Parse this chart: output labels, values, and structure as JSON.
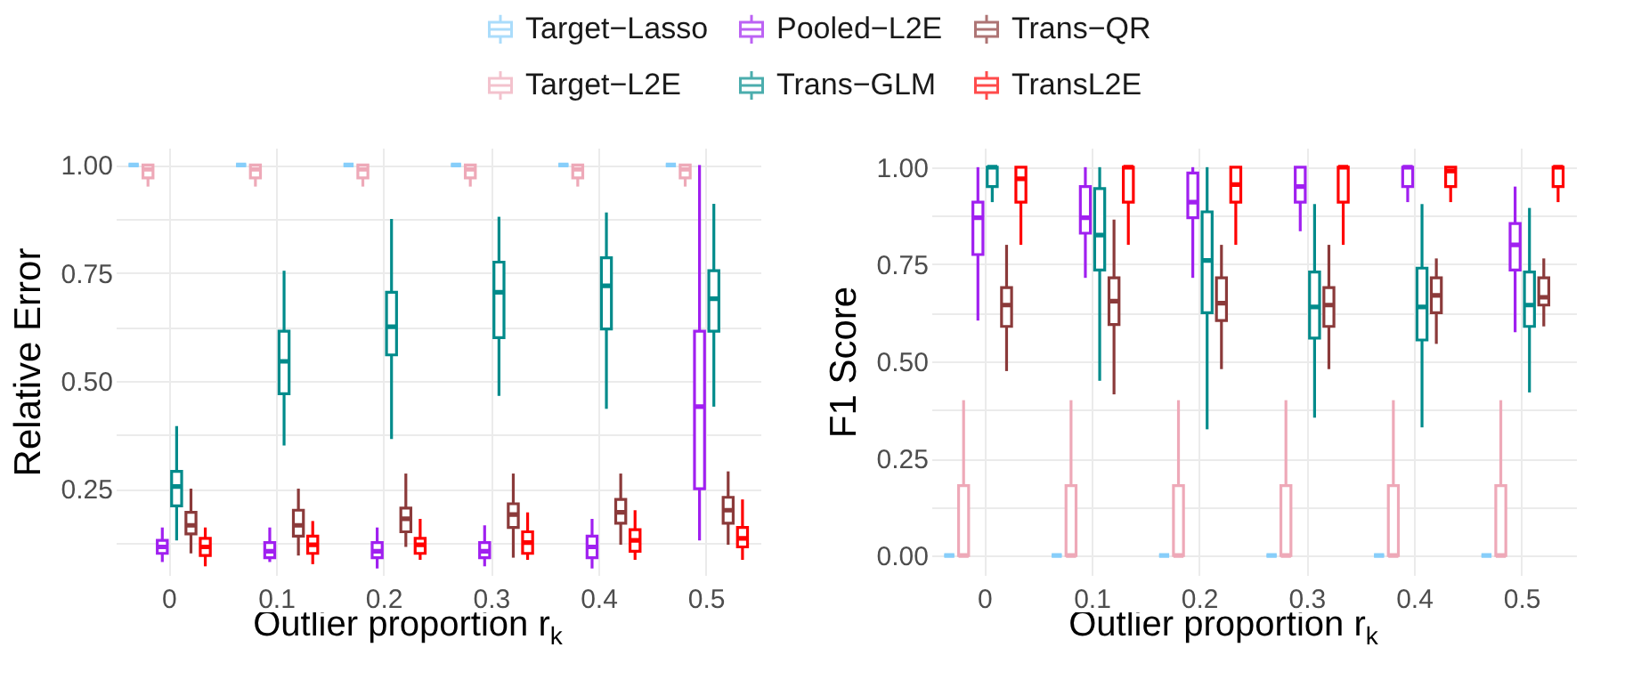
{
  "chart_data": [
    {
      "type": "box",
      "ylabel": "Relative Error",
      "xlabel": "Outlier proportion  r$_{k}$",
      "legend": "top",
      "grid": true,
      "categories": [
        "0",
        "0.1",
        "0.2",
        "0.3",
        "0.4",
        "0.5"
      ],
      "ylim": [
        0.05,
        1.04
      ],
      "yticks": [
        {
          "value": 0.125,
          "label": null
        },
        {
          "value": 0.25,
          "label": "0.25"
        },
        {
          "value": 0.375,
          "label": null
        },
        {
          "value": 0.5,
          "label": "0.50"
        },
        {
          "value": 0.625,
          "label": null
        },
        {
          "value": 0.75,
          "label": "0.75"
        },
        {
          "value": 0.875,
          "label": null
        },
        {
          "value": 1.0,
          "label": "1.00"
        }
      ],
      "series": [
        {
          "name": "Target−Lasso",
          "color": "#87cefa",
          "boxes": [
            {
              "low": 1,
              "q1": 1,
              "median": 1,
              "q3": 1,
              "high": 1
            },
            {
              "low": 1,
              "q1": 1,
              "median": 1,
              "q3": 1,
              "high": 1
            },
            {
              "low": 1,
              "q1": 1,
              "median": 1,
              "q3": 1,
              "high": 1
            },
            {
              "low": 1,
              "q1": 1,
              "median": 1,
              "q3": 1,
              "high": 1
            },
            {
              "low": 1,
              "q1": 1,
              "median": 1,
              "q3": 1,
              "high": 1
            },
            {
              "low": 1,
              "q1": 1,
              "median": 1,
              "q3": 1,
              "high": 1
            }
          ]
        },
        {
          "name": "Target−L2E",
          "color": "#eea9b8",
          "boxes": [
            {
              "low": 0.95,
              "q1": 0.97,
              "median": 0.99,
              "q3": 1,
              "high": 1
            },
            {
              "low": 0.95,
              "q1": 0.97,
              "median": 0.99,
              "q3": 1,
              "high": 1
            },
            {
              "low": 0.95,
              "q1": 0.97,
              "median": 0.99,
              "q3": 1,
              "high": 1
            },
            {
              "low": 0.95,
              "q1": 0.97,
              "median": 0.99,
              "q3": 1,
              "high": 1
            },
            {
              "low": 0.95,
              "q1": 0.97,
              "median": 0.99,
              "q3": 1,
              "high": 1
            },
            {
              "low": 0.95,
              "q1": 0.97,
              "median": 0.99,
              "q3": 1,
              "high": 1
            }
          ]
        },
        {
          "name": "Pooled−L2E",
          "color": "#a020f0",
          "boxes": [
            {
              "low": 0.08,
              "q1": 0.1,
              "median": 0.115,
              "q3": 0.13,
              "high": 0.16
            },
            {
              "low": 0.08,
              "q1": 0.09,
              "median": 0.105,
              "q3": 0.125,
              "high": 0.16
            },
            {
              "low": 0.065,
              "q1": 0.09,
              "median": 0.105,
              "q3": 0.125,
              "high": 0.16
            },
            {
              "low": 0.07,
              "q1": 0.09,
              "median": 0.105,
              "q3": 0.125,
              "high": 0.165
            },
            {
              "low": 0.065,
              "q1": 0.09,
              "median": 0.115,
              "q3": 0.14,
              "high": 0.18
            },
            {
              "low": 0.13,
              "q1": 0.25,
              "median": 0.44,
              "q3": 0.615,
              "high": 1.0
            }
          ]
        },
        {
          "name": "Trans−GLM",
          "color": "#008b8b",
          "boxes": [
            {
              "low": 0.13,
              "q1": 0.21,
              "median": 0.255,
              "q3": 0.29,
              "high": 0.395
            },
            {
              "low": 0.35,
              "q1": 0.47,
              "median": 0.545,
              "q3": 0.615,
              "high": 0.755
            },
            {
              "low": 0.365,
              "q1": 0.56,
              "median": 0.625,
              "q3": 0.705,
              "high": 0.875
            },
            {
              "low": 0.465,
              "q1": 0.6,
              "median": 0.705,
              "q3": 0.775,
              "high": 0.88
            },
            {
              "low": 0.435,
              "q1": 0.62,
              "median": 0.72,
              "q3": 0.785,
              "high": 0.89
            },
            {
              "low": 0.44,
              "q1": 0.615,
              "median": 0.69,
              "q3": 0.755,
              "high": 0.91
            }
          ]
        },
        {
          "name": "Trans−QR",
          "color": "#8b3a3a",
          "boxes": [
            {
              "low": 0.1,
              "q1": 0.145,
              "median": 0.165,
              "q3": 0.195,
              "high": 0.25
            },
            {
              "low": 0.095,
              "q1": 0.14,
              "median": 0.165,
              "q3": 0.2,
              "high": 0.25
            },
            {
              "low": 0.115,
              "q1": 0.15,
              "median": 0.18,
              "q3": 0.205,
              "high": 0.285
            },
            {
              "low": 0.09,
              "q1": 0.16,
              "median": 0.19,
              "q3": 0.215,
              "high": 0.285
            },
            {
              "low": 0.12,
              "q1": 0.17,
              "median": 0.195,
              "q3": 0.225,
              "high": 0.285
            },
            {
              "low": 0.12,
              "q1": 0.17,
              "median": 0.2,
              "q3": 0.23,
              "high": 0.29
            }
          ]
        },
        {
          "name": "TransL2E",
          "color": "#ff0000",
          "boxes": [
            {
              "low": 0.07,
              "q1": 0.095,
              "median": 0.115,
              "q3": 0.135,
              "high": 0.16
            },
            {
              "low": 0.075,
              "q1": 0.1,
              "median": 0.12,
              "q3": 0.14,
              "high": 0.175
            },
            {
              "low": 0.085,
              "q1": 0.1,
              "median": 0.12,
              "q3": 0.135,
              "high": 0.18
            },
            {
              "low": 0.085,
              "q1": 0.1,
              "median": 0.125,
              "q3": 0.15,
              "high": 0.195
            },
            {
              "low": 0.085,
              "q1": 0.105,
              "median": 0.13,
              "q3": 0.155,
              "high": 0.2
            },
            {
              "low": 0.085,
              "q1": 0.115,
              "median": 0.135,
              "q3": 0.16,
              "high": 0.225
            }
          ]
        }
      ]
    },
    {
      "type": "box",
      "ylabel": "F1 Score",
      "xlabel": "Outlier proportion  r$_{k}$",
      "legend": "top",
      "grid": true,
      "categories": [
        "0",
        "0.1",
        "0.2",
        "0.3",
        "0.4",
        "0.5"
      ],
      "ylim": [
        -0.05,
        1.05
      ],
      "yticks": [
        {
          "value": 0,
          "label": "0.00"
        },
        {
          "value": 0.125,
          "label": null
        },
        {
          "value": 0.25,
          "label": "0.25"
        },
        {
          "value": 0.375,
          "label": null
        },
        {
          "value": 0.5,
          "label": "0.50"
        },
        {
          "value": 0.625,
          "label": null
        },
        {
          "value": 0.75,
          "label": "0.75"
        },
        {
          "value": 0.875,
          "label": null
        },
        {
          "value": 1.0,
          "label": "1.00"
        }
      ],
      "series": [
        {
          "name": "Target−Lasso",
          "color": "#87cefa",
          "boxes": [
            {
              "low": 0,
              "q1": 0,
              "median": 0,
              "q3": 0,
              "high": 0
            },
            {
              "low": 0,
              "q1": 0,
              "median": 0,
              "q3": 0,
              "high": 0
            },
            {
              "low": 0,
              "q1": 0,
              "median": 0,
              "q3": 0,
              "high": 0
            },
            {
              "low": 0,
              "q1": 0,
              "median": 0,
              "q3": 0,
              "high": 0
            },
            {
              "low": 0,
              "q1": 0,
              "median": 0,
              "q3": 0,
              "high": 0
            },
            {
              "low": 0,
              "q1": 0,
              "median": 0,
              "q3": 0,
              "high": 0
            }
          ]
        },
        {
          "name": "Target−L2E",
          "color": "#eea9b8",
          "boxes": [
            {
              "low": 0,
              "q1": 0,
              "median": 0,
              "q3": 0.18,
              "high": 0.4
            },
            {
              "low": 0,
              "q1": 0,
              "median": 0,
              "q3": 0.18,
              "high": 0.4
            },
            {
              "low": 0,
              "q1": 0,
              "median": 0,
              "q3": 0.18,
              "high": 0.4
            },
            {
              "low": 0,
              "q1": 0,
              "median": 0,
              "q3": 0.18,
              "high": 0.4
            },
            {
              "low": 0,
              "q1": 0,
              "median": 0,
              "q3": 0.18,
              "high": 0.4
            },
            {
              "low": 0,
              "q1": 0,
              "median": 0,
              "q3": 0.18,
              "high": 0.4
            }
          ]
        },
        {
          "name": "Pooled−L2E",
          "color": "#a020f0",
          "boxes": [
            {
              "low": 0.605,
              "q1": 0.775,
              "median": 0.87,
              "q3": 0.91,
              "high": 1.0
            },
            {
              "low": 0.715,
              "q1": 0.83,
              "median": 0.87,
              "q3": 0.95,
              "high": 1.0
            },
            {
              "low": 0.715,
              "q1": 0.87,
              "median": 0.91,
              "q3": 0.985,
              "high": 1.0
            },
            {
              "low": 0.835,
              "q1": 0.91,
              "median": 0.95,
              "q3": 1.0,
              "high": 1.0
            },
            {
              "low": 0.91,
              "q1": 0.95,
              "median": 1.0,
              "q3": 1.0,
              "high": 1.0
            },
            {
              "low": 0.575,
              "q1": 0.735,
              "median": 0.8,
              "q3": 0.855,
              "high": 0.95
            }
          ]
        },
        {
          "name": "Trans−GLM",
          "color": "#008b8b",
          "boxes": [
            {
              "low": 0.91,
              "q1": 0.95,
              "median": 1.0,
              "q3": 1.0,
              "high": 1.0
            },
            {
              "low": 0.45,
              "q1": 0.735,
              "median": 0.825,
              "q3": 0.945,
              "high": 1.0
            },
            {
              "low": 0.325,
              "q1": 0.625,
              "median": 0.76,
              "q3": 0.885,
              "high": 1.0
            },
            {
              "low": 0.355,
              "q1": 0.56,
              "median": 0.64,
              "q3": 0.73,
              "high": 0.905
            },
            {
              "low": 0.33,
              "q1": 0.555,
              "median": 0.64,
              "q3": 0.74,
              "high": 0.905
            },
            {
              "low": 0.42,
              "q1": 0.59,
              "median": 0.645,
              "q3": 0.73,
              "high": 0.895
            }
          ]
        },
        {
          "name": "Trans−QR",
          "color": "#8b3a3a",
          "boxes": [
            {
              "low": 0.475,
              "q1": 0.59,
              "median": 0.645,
              "q3": 0.69,
              "high": 0.8
            },
            {
              "low": 0.415,
              "q1": 0.595,
              "median": 0.655,
              "q3": 0.715,
              "high": 0.865
            },
            {
              "low": 0.48,
              "q1": 0.605,
              "median": 0.65,
              "q3": 0.715,
              "high": 0.8
            },
            {
              "low": 0.48,
              "q1": 0.59,
              "median": 0.645,
              "q3": 0.69,
              "high": 0.8
            },
            {
              "low": 0.545,
              "q1": 0.625,
              "median": 0.67,
              "q3": 0.715,
              "high": 0.765
            },
            {
              "low": 0.59,
              "q1": 0.645,
              "median": 0.665,
              "q3": 0.715,
              "high": 0.765
            }
          ]
        },
        {
          "name": "TransL2E",
          "color": "#ff0000",
          "boxes": [
            {
              "low": 0.8,
              "q1": 0.91,
              "median": 0.97,
              "q3": 1.0,
              "high": 1.0
            },
            {
              "low": 0.8,
              "q1": 0.91,
              "median": 1.0,
              "q3": 1.0,
              "high": 1.0
            },
            {
              "low": 0.8,
              "q1": 0.91,
              "median": 0.955,
              "q3": 1.0,
              "high": 1.0
            },
            {
              "low": 0.8,
              "q1": 0.91,
              "median": 1.0,
              "q3": 1.0,
              "high": 1.0
            },
            {
              "low": 0.91,
              "q1": 0.95,
              "median": 0.99,
              "q3": 1.0,
              "high": 1.0
            },
            {
              "low": 0.91,
              "q1": 0.95,
              "median": 1.0,
              "q3": 1.0,
              "high": 1.0
            }
          ]
        }
      ]
    }
  ]
}
